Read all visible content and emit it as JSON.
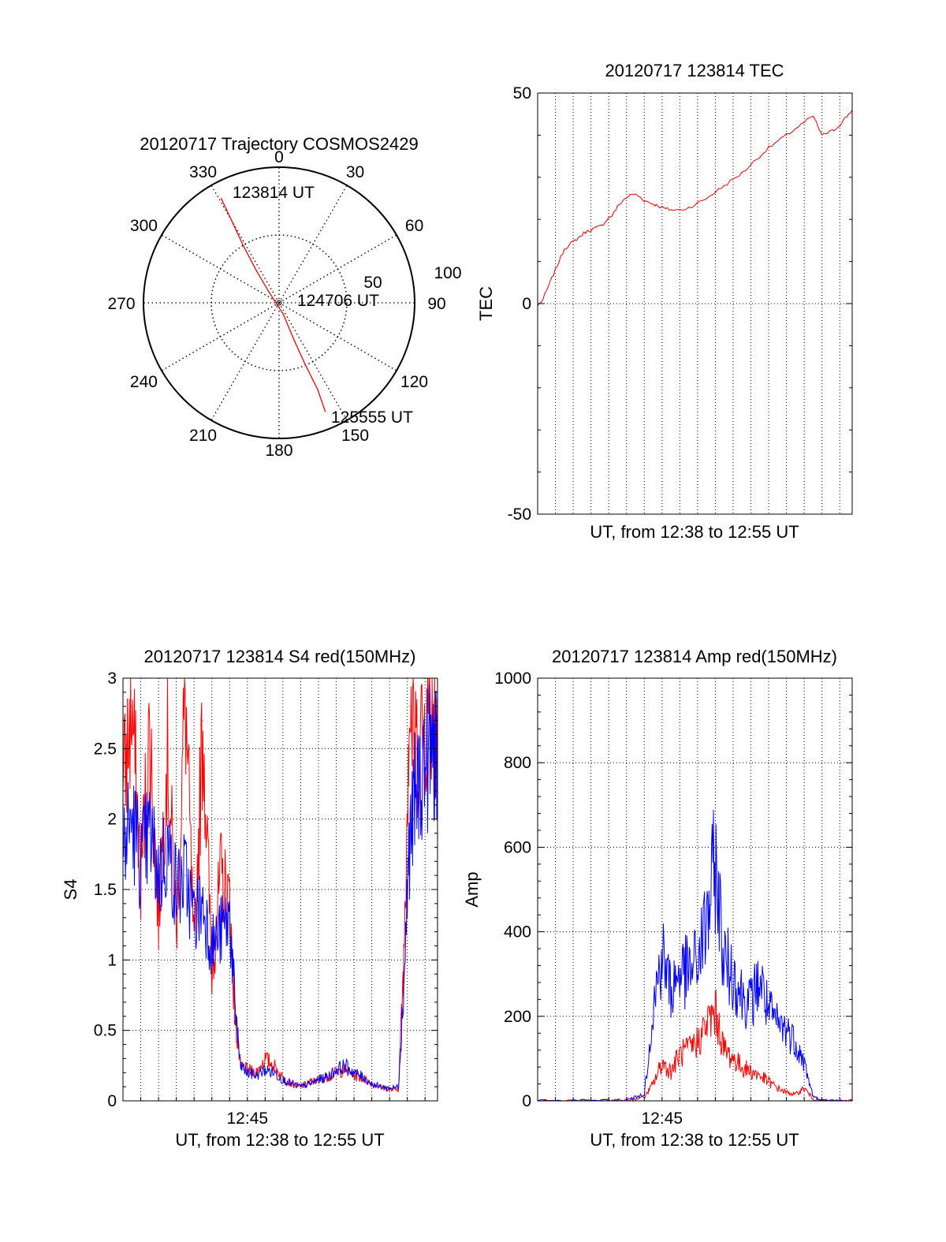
{
  "colors": {
    "red": "#ff0000",
    "blue": "#0000ff",
    "axis": "#000000",
    "grid": "#000000"
  },
  "chart_data": [
    {
      "type": "polar",
      "title": "20120717 Trajectory COSMOS2429",
      "angle_labels": [
        "0",
        "30",
        "60",
        "90",
        "120",
        "150",
        "180",
        "210",
        "240",
        "270",
        "300",
        "330"
      ],
      "radial_labels": [
        "50",
        "100"
      ],
      "rlim": [
        0,
        100
      ],
      "series": [
        {
          "color": "red",
          "points": [
            {
              "azimuth": 331,
              "r": 88
            },
            {
              "azimuth": 330,
              "r": 70
            },
            {
              "azimuth": 328,
              "r": 50
            },
            {
              "azimuth": 325,
              "r": 30
            },
            {
              "azimuth": 318,
              "r": 12
            },
            {
              "azimuth": 160,
              "r": 9
            },
            {
              "azimuth": 158,
              "r": 30
            },
            {
              "azimuth": 157,
              "r": 50
            },
            {
              "azimuth": 156,
              "r": 70
            },
            {
              "azimuth": 157,
              "r": 87
            }
          ]
        }
      ],
      "annotations": [
        {
          "text": "123814 UT",
          "azimuth": 341,
          "r": 86
        },
        {
          "text": "124706 UT",
          "azimuth": 88,
          "r": 38
        },
        {
          "text": "125555 UT",
          "azimuth": 143,
          "r": 100
        }
      ]
    },
    {
      "type": "line",
      "title": "20120717 123814 TEC",
      "xlabel": "UT, from 12:38 to 12:55 UT",
      "ylabel": "TEC",
      "xlim": [
        0,
        17.7
      ],
      "ylim": [
        -50,
        50
      ],
      "yticks": [
        -50,
        0,
        50
      ],
      "grid": true,
      "series": [
        {
          "color": "red",
          "x": [
            0,
            0.3,
            0.6,
            0.9,
            1.2,
            1.5,
            1.8,
            2.1,
            2.4,
            2.7,
            3.0,
            3.3,
            3.6,
            3.9,
            4.2,
            4.5,
            4.8,
            5.1,
            5.4,
            5.7,
            6.0,
            6.3,
            6.6,
            6.9,
            7.2,
            7.5,
            8.0,
            8.5,
            9.0,
            9.5,
            10.0,
            10.5,
            11.0,
            11.5,
            12.0,
            12.5,
            13.0,
            13.5,
            14.0,
            14.5,
            15.0,
            15.5,
            16.0,
            16.3,
            16.6,
            16.9,
            17.2,
            17.5,
            17.7
          ],
          "y": [
            -0.5,
            1,
            4,
            7,
            10,
            13,
            14,
            15,
            16,
            17,
            17.5,
            18,
            18.5,
            20,
            21,
            23,
            24.5,
            25.5,
            26,
            25.5,
            24.5,
            24,
            23.5,
            23,
            22.5,
            22.3,
            22.2,
            22.8,
            23.8,
            25,
            26.5,
            28,
            29.5,
            31,
            33,
            35,
            37,
            38.5,
            40,
            41.5,
            43,
            44.5,
            40,
            40.5,
            41,
            42,
            43.5,
            45,
            46
          ]
        }
      ]
    },
    {
      "type": "line",
      "title": "20120717 123814 S4 red(150MHz)",
      "xlabel": "UT, from 12:38 to 12:55 UT",
      "ylabel": "S4",
      "xlim": [
        0,
        17.7
      ],
      "ylim": [
        0,
        3
      ],
      "yticks": [
        0,
        0.5,
        1,
        1.5,
        2,
        2.5,
        3
      ],
      "xtick_labels": [
        {
          "x": 7,
          "label": "12:45"
        }
      ],
      "grid": true,
      "series": [
        {
          "color": "red",
          "x": [
            0,
            0.5,
            1.0,
            1.5,
            2.0,
            2.5,
            3.0,
            3.5,
            4.0,
            4.5,
            5.0,
            5.5,
            6.0,
            6.3,
            6.6,
            7.0,
            7.5,
            8.0,
            8.5,
            9.0,
            9.5,
            10.0,
            10.5,
            11.0,
            11.5,
            12.0,
            12.5,
            13.0,
            13.5,
            14.0,
            14.5,
            15.0,
            15.5,
            15.8,
            16.1,
            16.5,
            17.0,
            17.5,
            17.7
          ],
          "y": [
            2.2,
            2.8,
            1.6,
            2.6,
            1.3,
            2.5,
            1.2,
            2.9,
            1.0,
            2.7,
            0.9,
            1.6,
            1.4,
            0.6,
            0.25,
            0.22,
            0.2,
            0.3,
            0.25,
            0.16,
            0.12,
            0.1,
            0.13,
            0.15,
            0.17,
            0.2,
            0.22,
            0.18,
            0.16,
            0.12,
            0.1,
            0.08,
            0.08,
            1.0,
            2.8,
            2.5,
            2.7,
            2.9,
            2.6
          ]
        },
        {
          "color": "blue",
          "x": [
            0,
            0.5,
            1.0,
            1.5,
            2.0,
            2.5,
            3.0,
            3.5,
            4.0,
            4.5,
            5.0,
            5.5,
            6.0,
            6.3,
            6.6,
            7.0,
            7.5,
            8.0,
            8.5,
            9.0,
            9.5,
            10.0,
            10.5,
            11.0,
            11.5,
            12.0,
            12.5,
            13.0,
            13.5,
            14.0,
            14.5,
            15.0,
            15.5,
            15.8,
            16.1,
            16.5,
            17.0,
            17.5,
            17.7
          ],
          "y": [
            1.8,
            2.0,
            1.7,
            1.9,
            1.6,
            1.8,
            1.5,
            1.6,
            1.3,
            1.4,
            1.1,
            1.2,
            1.3,
            0.7,
            0.25,
            0.2,
            0.18,
            0.22,
            0.2,
            0.15,
            0.12,
            0.1,
            0.12,
            0.15,
            0.17,
            0.22,
            0.25,
            0.2,
            0.17,
            0.12,
            0.1,
            0.09,
            0.1,
            0.8,
            1.8,
            2.2,
            2.4,
            2.5,
            2.3
          ]
        }
      ]
    },
    {
      "type": "line",
      "title": "20120717 123814 Amp red(150MHz)",
      "xlabel": "UT, from 12:38 to 12:55 UT",
      "ylabel": "Amp",
      "xlim": [
        0,
        17.7
      ],
      "ylim": [
        0,
        1000
      ],
      "yticks": [
        0,
        200,
        400,
        600,
        800,
        1000
      ],
      "xtick_labels": [
        {
          "x": 7,
          "label": "12:45"
        }
      ],
      "grid": true,
      "series": [
        {
          "color": "red",
          "x": [
            0,
            2,
            4,
            5,
            6,
            6.5,
            7,
            7.5,
            8,
            8.5,
            9,
            9.5,
            10,
            10.5,
            11,
            11.5,
            12,
            12.5,
            13,
            13.5,
            14,
            14.5,
            15,
            15.5,
            16,
            17.7
          ],
          "y": [
            0,
            0,
            0,
            2,
            8,
            40,
            90,
            70,
            110,
            120,
            140,
            180,
            210,
            120,
            100,
            80,
            70,
            60,
            45,
            30,
            20,
            15,
            30,
            5,
            0,
            0
          ]
        },
        {
          "color": "blue",
          "x": [
            0,
            2,
            4,
            5,
            6,
            6.5,
            7,
            7.5,
            8,
            8.5,
            9,
            9.5,
            10,
            10.5,
            11,
            11.5,
            12,
            12.5,
            13,
            13.5,
            14,
            14.5,
            15,
            15.5,
            16,
            17.7
          ],
          "y": [
            0,
            0,
            0,
            2,
            15,
            220,
            350,
            260,
            310,
            300,
            330,
            420,
            560,
            330,
            300,
            250,
            230,
            290,
            210,
            180,
            170,
            140,
            90,
            10,
            0,
            0
          ]
        }
      ]
    }
  ]
}
